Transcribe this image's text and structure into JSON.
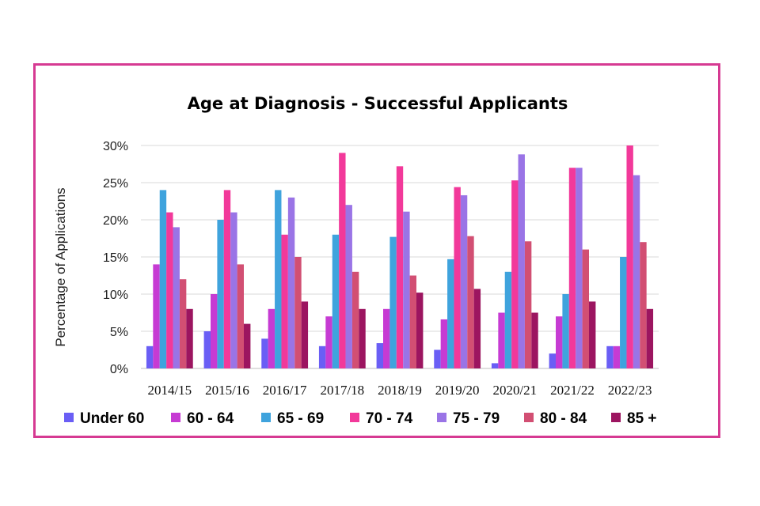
{
  "chart_data": {
    "type": "bar",
    "title": "Age at Diagnosis - Successful Applicants",
    "xlabel": "",
    "ylabel": "Percentage of Applications",
    "ylim": [
      0,
      30
    ],
    "yticks": [
      "0%",
      "5%",
      "10%",
      "15%",
      "20%",
      "25%",
      "30%"
    ],
    "categories": [
      "2014/15",
      "2015/16",
      "2016/17",
      "2017/18",
      "2018/19",
      "2019/20",
      "2020/21",
      "2021/22",
      "2022/23"
    ],
    "grid": "horizontal",
    "legend_position": "bottom",
    "series": [
      {
        "name": "Under 60",
        "color": "#6a5ef5",
        "values": [
          3,
          5,
          4,
          3,
          3.4,
          2.5,
          0.7,
          2,
          3
        ]
      },
      {
        "name": "60 - 64",
        "color": "#c63bd3",
        "values": [
          14,
          10,
          8,
          7,
          8,
          6.6,
          7.5,
          7,
          3
        ]
      },
      {
        "name": "65 - 69",
        "color": "#3fa3dd",
        "values": [
          24,
          20,
          24,
          18,
          17.7,
          14.7,
          13,
          10,
          15
        ]
      },
      {
        "name": "70 - 74",
        "color": "#f2399a",
        "values": [
          21,
          24,
          18,
          29,
          27.2,
          24.4,
          25.3,
          27,
          30
        ]
      },
      {
        "name": "75 - 79",
        "color": "#9a74e6",
        "values": [
          19,
          21,
          23,
          22,
          21.1,
          23.3,
          28.8,
          27,
          26
        ]
      },
      {
        "name": "80 - 84",
        "color": "#d24f73",
        "values": [
          12,
          14,
          15,
          13,
          12.5,
          17.8,
          17.1,
          16,
          17
        ]
      },
      {
        "name": "85 +",
        "color": "#9c1560",
        "values": [
          8,
          6,
          9,
          8,
          10.2,
          10.7,
          7.5,
          9,
          8
        ]
      }
    ]
  }
}
